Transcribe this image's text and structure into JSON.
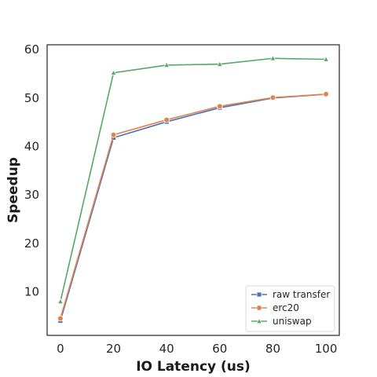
{
  "chart_data": {
    "type": "line",
    "title": "",
    "xlabel": "IO Latency (us)",
    "ylabel": "Speedup",
    "x": [
      0,
      20,
      40,
      60,
      80,
      100
    ],
    "xlim": [
      -5,
      105
    ],
    "ylim": [
      1,
      61
    ],
    "xticks": [
      0,
      20,
      40,
      60,
      80,
      100
    ],
    "yticks": [
      10,
      20,
      30,
      40,
      50,
      60
    ],
    "grid": false,
    "legend_position": "bottom-right",
    "series": [
      {
        "name": "raw transfer",
        "values": [
          4.0,
          41.8,
          45.1,
          48.0,
          50.0,
          50.8
        ],
        "color": "#4c72b0",
        "marker": "square"
      },
      {
        "name": "erc20",
        "values": [
          4.5,
          42.4,
          45.5,
          48.3,
          50.1,
          50.8
        ],
        "color": "#dd8452",
        "marker": "circle"
      },
      {
        "name": "uniswap",
        "values": [
          8.0,
          55.2,
          56.8,
          57.0,
          58.2,
          58.0
        ],
        "color": "#55a868",
        "marker": "triangle"
      }
    ]
  }
}
